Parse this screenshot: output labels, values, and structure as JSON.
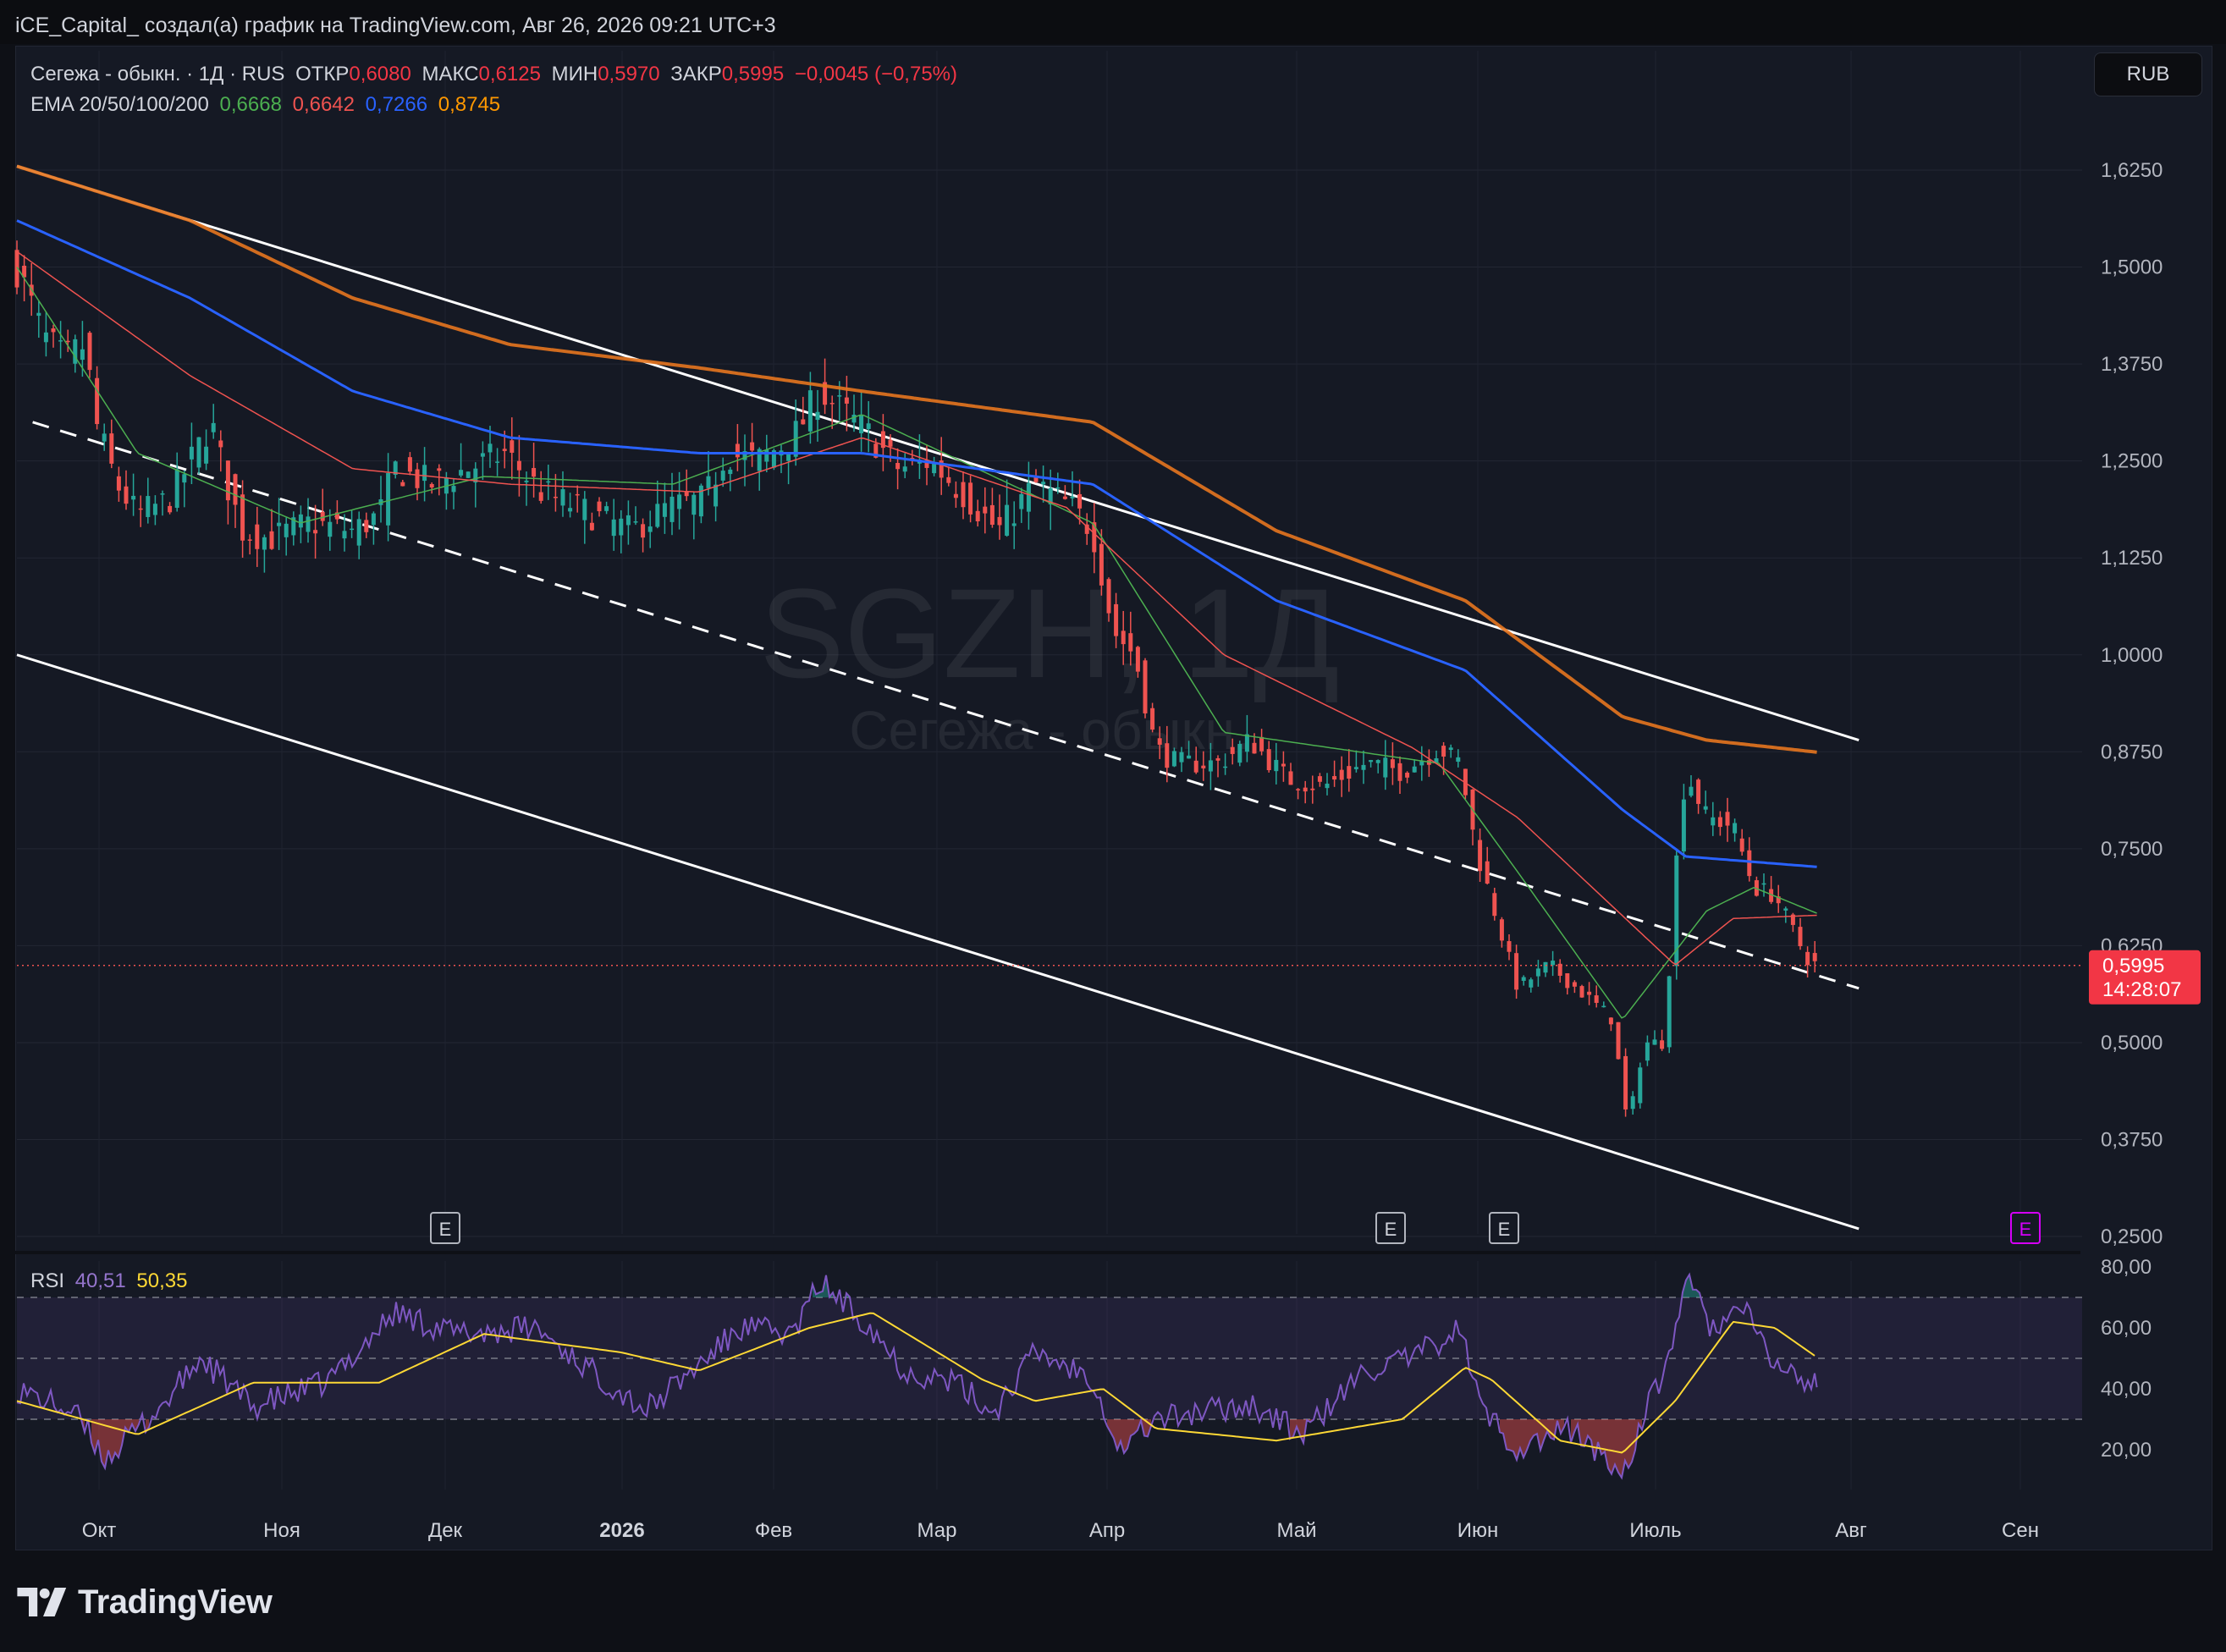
{
  "header": {
    "attribution": "iCE_Capital_ создал(а) график на TradingView.com, Авг 26, 2026 09:21 UTC+3"
  },
  "legend": {
    "symbol": "Сегежа - обыкн. · 1Д · RUS",
    "open_label": "ОТКР",
    "open": "0,6080",
    "high_label": "МАКС",
    "high": "0,6125",
    "low_label": "МИН",
    "low": "0,5970",
    "close_label": "ЗАКР",
    "close": "0,5995",
    "change": "−0,0045 (−0,75%)",
    "ema_label": "EMA 20/50/100/200",
    "ema20": "0,6668",
    "ema50": "0,6642",
    "ema100": "0,7266",
    "ema200": "0,8745"
  },
  "currency": "RUB",
  "watermark": {
    "ticker": "SGZH, 1Д",
    "name": "Сегежа - обыкн."
  },
  "price_label": {
    "value": "0,5995",
    "countdown": "14:28:07"
  },
  "rsi_legend": {
    "label": "RSI",
    "rsi": "40,51",
    "ma": "50,35"
  },
  "event_marker": "E",
  "footer": {
    "brand": "TradingView"
  },
  "colors": {
    "up": "#26a69a",
    "down": "#ef5350",
    "ema20": "#4caf50",
    "ema50": "#ef5350",
    "ema100": "#2962ff",
    "ema200": "#e6761f",
    "rsi": "#7e57c2",
    "rsi_ma": "#fdd835",
    "channel": "#ffffff",
    "background": "#151924"
  },
  "chart_data": [
    {
      "type": "candlestick",
      "title": "Сегежа - обыкн. · 1Д · RUS",
      "y_scale": "linear",
      "ylim": [
        0.24,
        1.66
      ],
      "y_ticks": [
        1.625,
        1.5,
        1.375,
        1.25,
        1.125,
        1.0,
        0.875,
        0.75,
        0.625,
        0.5,
        0.375,
        0.25
      ],
      "y_tick_labels": [
        "1,6250",
        "1,5000",
        "1,3750",
        "1,2500",
        "1,1250",
        "1,0000",
        "0,8750",
        "0,7500",
        "0,6250",
        "0,5000",
        "0,3750",
        "0,2500"
      ],
      "x_ticks": [
        "Окт",
        "Ноя",
        "Дек",
        "2026",
        "Фев",
        "Мар",
        "Апр",
        "Май",
        "Июн",
        "Июль",
        "Авг",
        "Сен"
      ],
      "grid": true,
      "close_approx": [
        [
          "2025-09-17",
          1.5
        ],
        [
          "2025-09-22",
          1.41
        ],
        [
          "2025-09-26",
          1.38
        ],
        [
          "2025-09-30",
          1.4
        ],
        [
          "2025-10-02",
          1.3
        ],
        [
          "2025-10-06",
          1.22
        ],
        [
          "2025-10-10",
          1.18
        ],
        [
          "2025-10-16",
          1.2
        ],
        [
          "2025-10-21",
          1.26
        ],
        [
          "2025-10-24",
          1.3
        ],
        [
          "2025-10-27",
          1.22
        ],
        [
          "2025-10-30",
          1.16
        ],
        [
          "2025-11-04",
          1.15
        ],
        [
          "2025-11-12",
          1.17
        ],
        [
          "2025-11-20",
          1.16
        ],
        [
          "2025-11-25",
          1.18
        ],
        [
          "2025-11-28",
          1.24
        ],
        [
          "2025-12-05",
          1.22
        ],
        [
          "2025-12-12",
          1.24
        ],
        [
          "2025-12-19",
          1.26
        ],
        [
          "2025-12-26",
          1.21
        ],
        [
          "2026-01-05",
          1.18
        ],
        [
          "2026-01-12",
          1.16
        ],
        [
          "2026-01-19",
          1.19
        ],
        [
          "2026-01-26",
          1.2
        ],
        [
          "2026-01-30",
          1.26
        ],
        [
          "2026-02-05",
          1.25
        ],
        [
          "2026-02-12",
          1.28
        ],
        [
          "2026-02-17",
          1.34
        ],
        [
          "2026-02-22",
          1.31
        ],
        [
          "2026-02-27",
          1.28
        ],
        [
          "2026-03-04",
          1.24
        ],
        [
          "2026-03-10",
          1.25
        ],
        [
          "2026-03-16",
          1.21
        ],
        [
          "2026-03-23",
          1.16
        ],
        [
          "2026-03-30",
          1.22
        ],
        [
          "2026-04-06",
          1.19
        ],
        [
          "2026-04-10",
          1.16
        ],
        [
          "2026-04-14",
          1.03
        ],
        [
          "2026-04-18",
          1.0
        ],
        [
          "2026-04-22",
          0.88
        ],
        [
          "2026-04-26",
          0.86
        ],
        [
          "2026-05-04",
          0.86
        ],
        [
          "2026-05-10",
          0.89
        ],
        [
          "2026-05-17",
          0.84
        ],
        [
          "2026-05-24",
          0.83
        ],
        [
          "2026-06-01",
          0.86
        ],
        [
          "2026-06-08",
          0.85
        ],
        [
          "2026-06-15",
          0.88
        ],
        [
          "2026-06-19",
          0.86
        ],
        [
          "2026-06-22",
          0.75
        ],
        [
          "2026-06-26",
          0.66
        ],
        [
          "2026-06-30",
          0.57
        ],
        [
          "2026-07-06",
          0.6
        ],
        [
          "2026-07-13",
          0.56
        ],
        [
          "2026-07-18",
          0.53
        ],
        [
          "2026-07-21",
          0.39
        ],
        [
          "2026-07-24",
          0.5
        ],
        [
          "2026-07-28",
          0.5
        ],
        [
          "2026-07-30",
          0.72
        ],
        [
          "2026-08-01",
          0.85
        ],
        [
          "2026-08-05",
          0.79
        ],
        [
          "2026-08-10",
          0.78
        ],
        [
          "2026-08-14",
          0.7
        ],
        [
          "2026-08-18",
          0.69
        ],
        [
          "2026-08-21",
          0.65
        ],
        [
          "2026-08-24",
          0.61
        ],
        [
          "2026-08-26",
          0.5995
        ]
      ],
      "last": {
        "open": 0.608,
        "high": 0.6125,
        "low": 0.597,
        "close": 0.5995
      },
      "series": [
        {
          "name": "EMA 20",
          "points": [
            [
              "2025-09-17",
              1.5
            ],
            [
              "2025-10-10",
              1.26
            ],
            [
              "2025-11-10",
              1.17
            ],
            [
              "2025-12-15",
              1.23
            ],
            [
              "2026-01-20",
              1.22
            ],
            [
              "2026-02-25",
              1.31
            ],
            [
              "2026-04-10",
              1.17
            ],
            [
              "2026-05-05",
              0.9
            ],
            [
              "2026-06-15",
              0.86
            ],
            [
              "2026-06-30",
              0.72
            ],
            [
              "2026-07-20",
              0.53
            ],
            [
              "2026-08-05",
              0.67
            ],
            [
              "2026-08-14",
              0.7
            ],
            [
              "2026-08-26",
              0.6668
            ]
          ]
        },
        {
          "name": "EMA 50",
          "points": [
            [
              "2025-09-17",
              1.52
            ],
            [
              "2025-10-20",
              1.36
            ],
            [
              "2025-11-20",
              1.24
            ],
            [
              "2025-12-20",
              1.22
            ],
            [
              "2026-01-25",
              1.21
            ],
            [
              "2026-02-25",
              1.28
            ],
            [
              "2026-04-05",
              1.19
            ],
            [
              "2026-05-05",
              1.0
            ],
            [
              "2026-06-10",
              0.88
            ],
            [
              "2026-06-30",
              0.79
            ],
            [
              "2026-07-30",
              0.6
            ],
            [
              "2026-08-10",
              0.66
            ],
            [
              "2026-08-26",
              0.6642
            ]
          ]
        },
        {
          "name": "EMA 100",
          "points": [
            [
              "2025-09-17",
              1.56
            ],
            [
              "2025-10-20",
              1.46
            ],
            [
              "2025-11-20",
              1.34
            ],
            [
              "2025-12-20",
              1.28
            ],
            [
              "2026-01-25",
              1.26
            ],
            [
              "2026-02-25",
              1.26
            ],
            [
              "2026-04-10",
              1.22
            ],
            [
              "2026-05-15",
              1.07
            ],
            [
              "2026-06-20",
              0.98
            ],
            [
              "2026-07-20",
              0.8
            ],
            [
              "2026-08-01",
              0.74
            ],
            [
              "2026-08-26",
              0.7266
            ]
          ]
        },
        {
          "name": "EMA 200",
          "points": [
            [
              "2025-09-17",
              1.63
            ],
            [
              "2025-10-20",
              1.56
            ],
            [
              "2025-11-20",
              1.46
            ],
            [
              "2025-12-20",
              1.4
            ],
            [
              "2026-01-25",
              1.37
            ],
            [
              "2026-02-25",
              1.34
            ],
            [
              "2026-04-10",
              1.3
            ],
            [
              "2026-05-15",
              1.16
            ],
            [
              "2026-06-20",
              1.07
            ],
            [
              "2026-07-20",
              0.92
            ],
            [
              "2026-08-05",
              0.89
            ],
            [
              "2026-08-26",
              0.8745
            ]
          ]
        }
      ],
      "channel": {
        "upper": [
          [
            "2025-09-17",
            1.63
          ],
          [
            "2026-09-03",
            0.89
          ]
        ],
        "lower": [
          [
            "2025-09-17",
            1.0
          ],
          [
            "2026-09-03",
            0.26
          ]
        ],
        "middle_dashed": [
          [
            "2025-09-20",
            1.3
          ],
          [
            "2026-09-03",
            0.57
          ]
        ]
      },
      "current_price_line": 0.5995
    },
    {
      "type": "line",
      "title": "RSI",
      "ylim": [
        0,
        100
      ],
      "y_ticks": [
        80,
        60,
        40,
        20
      ],
      "y_tick_labels": [
        "80,00",
        "60,00",
        "40,00",
        "20,00"
      ],
      "bands": {
        "upper": 70,
        "middle": 50,
        "lower": 30
      },
      "series": [
        {
          "name": "RSI",
          "points": [
            [
              "2025-09-17",
              40
            ],
            [
              "2025-09-28",
              32
            ],
            [
              "2025-10-04",
              17
            ],
            [
              "2025-10-15",
              35
            ],
            [
              "2025-10-22",
              50
            ],
            [
              "2025-11-01",
              34
            ],
            [
              "2025-11-15",
              42
            ],
            [
              "2025-11-28",
              65
            ],
            [
              "2025-12-10",
              58
            ],
            [
              "2025-12-25",
              60
            ],
            [
              "2026-01-05",
              45
            ],
            [
              "2026-01-15",
              33
            ],
            [
              "2026-01-25",
              48
            ],
            [
              "2026-02-02",
              60
            ],
            [
              "2026-02-12",
              58
            ],
            [
              "2026-02-17",
              75
            ],
            [
              "2026-02-27",
              60
            ],
            [
              "2026-03-05",
              46
            ],
            [
              "2026-03-15",
              42
            ],
            [
              "2026-03-22",
              32
            ],
            [
              "2026-03-30",
              52
            ],
            [
              "2026-04-10",
              44
            ],
            [
              "2026-04-15",
              20
            ],
            [
              "2026-04-22",
              30
            ],
            [
              "2026-05-10",
              35
            ],
            [
              "2026-05-20",
              25
            ],
            [
              "2026-06-01",
              46
            ],
            [
              "2026-06-10",
              50
            ],
            [
              "2026-06-19",
              60
            ],
            [
              "2026-06-23",
              34
            ],
            [
              "2026-06-30",
              20
            ],
            [
              "2026-07-10",
              27
            ],
            [
              "2026-07-20",
              12
            ],
            [
              "2026-07-25",
              35
            ],
            [
              "2026-07-28",
              45
            ],
            [
              "2026-08-01",
              76
            ],
            [
              "2026-08-06",
              60
            ],
            [
              "2026-08-12",
              66
            ],
            [
              "2026-08-18",
              48
            ],
            [
              "2026-08-22",
              44
            ],
            [
              "2026-08-26",
              40.51
            ]
          ]
        },
        {
          "name": "RSI MA",
          "points": [
            [
              "2025-09-17",
              36
            ],
            [
              "2025-10-10",
              25
            ],
            [
              "2025-11-01",
              42
            ],
            [
              "2025-11-25",
              42
            ],
            [
              "2025-12-15",
              58
            ],
            [
              "2026-01-10",
              52
            ],
            [
              "2026-01-25",
              46
            ],
            [
              "2026-02-15",
              60
            ],
            [
              "2026-02-27",
              65
            ],
            [
              "2026-03-20",
              43
            ],
            [
              "2026-03-30",
              36
            ],
            [
              "2026-04-12",
              40
            ],
            [
              "2026-04-22",
              27
            ],
            [
              "2026-05-15",
              23
            ],
            [
              "2026-06-08",
              30
            ],
            [
              "2026-06-20",
              47
            ],
            [
              "2026-06-25",
              43
            ],
            [
              "2026-07-08",
              23
            ],
            [
              "2026-07-20",
              19
            ],
            [
              "2026-07-30",
              36
            ],
            [
              "2026-08-10",
              62
            ],
            [
              "2026-08-18",
              60
            ],
            [
              "2026-08-26",
              50.35
            ]
          ]
        }
      ]
    }
  ]
}
